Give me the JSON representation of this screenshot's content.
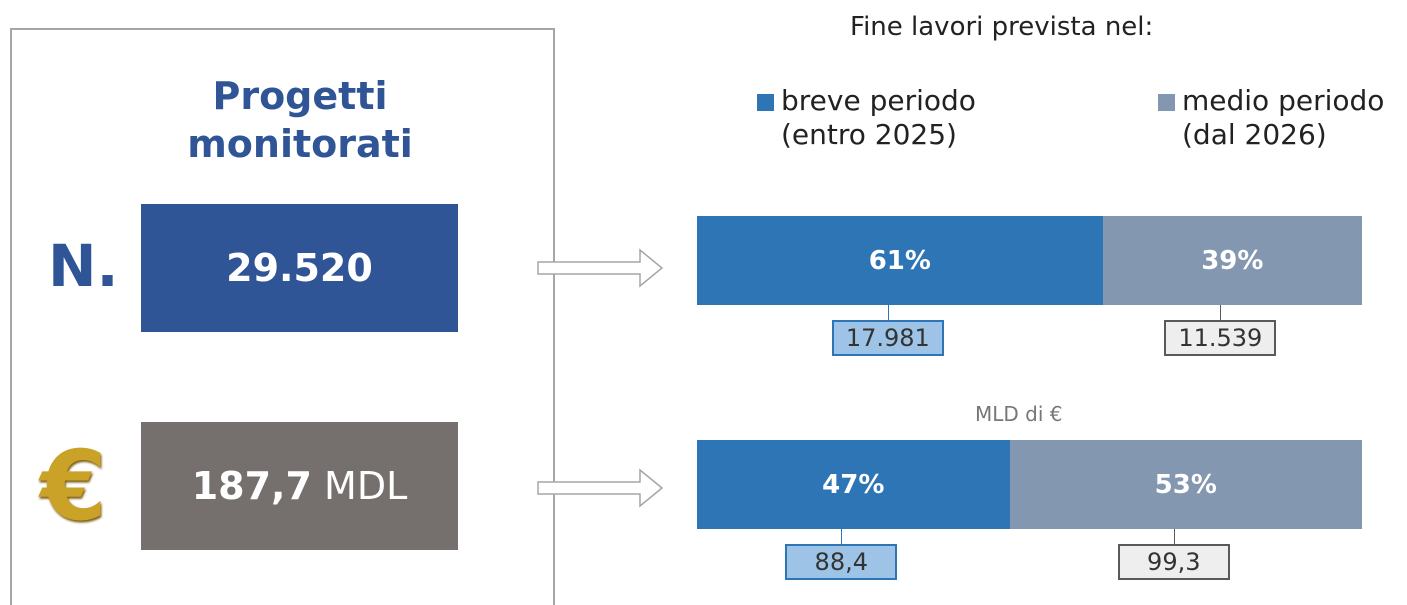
{
  "panel": {
    "title": "Progetti monitorati",
    "count_label": "N.",
    "count_value": "29.520",
    "currency_icon": "€",
    "amount_value": "187,7",
    "amount_unit": "MDL"
  },
  "chart_data": {
    "type": "stacked-bar-100",
    "title": "Fine lavori prevista nel:",
    "categories": [
      null,
      null
    ],
    "annotations": [
      null,
      "MLD di €"
    ],
    "series": [
      {
        "name": "breve periodo (entro 2025)",
        "color": "#2e75b6",
        "values": [
          61,
          47
        ],
        "value_labels": [
          "61%",
          "47%"
        ],
        "amounts": [
          17981,
          88.4
        ],
        "amount_labels": [
          "17.981",
          "88,4"
        ],
        "box_fill": "#9dc3e6",
        "box_border": "#2e75b6"
      },
      {
        "name": "medio periodo (dal 2026)",
        "color": "#8497b0",
        "values": [
          39,
          53
        ],
        "value_labels": [
          "39%",
          "53%"
        ],
        "amounts": [
          11539,
          99.3
        ],
        "amount_labels": [
          "11.539",
          "99,3"
        ],
        "box_fill": "#eeeeee",
        "box_border": "#595959"
      }
    ]
  }
}
